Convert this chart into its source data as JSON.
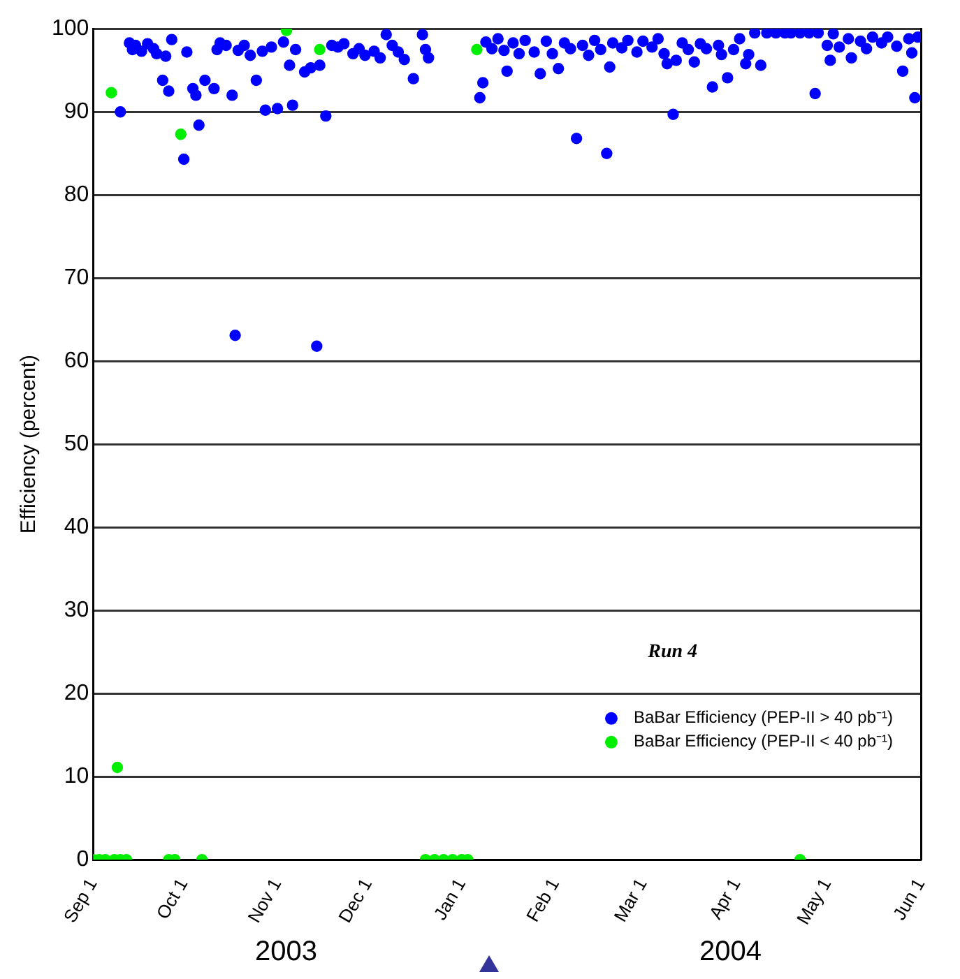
{
  "chart_data": {
    "type": "scatter",
    "ylabel": "Efficiency (percent)",
    "xlim": [
      "2003-09-01",
      "2004-06-01"
    ],
    "xticks": [
      {
        "value": "2003-09-01",
        "label": "Sep 1"
      },
      {
        "value": "2003-10-01",
        "label": "Oct 1"
      },
      {
        "value": "2003-11-01",
        "label": "Nov 1"
      },
      {
        "value": "2003-12-01",
        "label": "Dec 1"
      },
      {
        "value": "2004-01-01",
        "label": "Jan 1"
      },
      {
        "value": "2004-02-01",
        "label": "Feb 1"
      },
      {
        "value": "2004-03-01",
        "label": "Mar 1"
      },
      {
        "value": "2004-04-01",
        "label": "Apr 1"
      },
      {
        "value": "2004-05-01",
        "label": "May 1"
      },
      {
        "value": "2004-06-01",
        "label": "Jun 1"
      }
    ],
    "ylim": [
      0,
      100
    ],
    "yticks": [
      0,
      10,
      20,
      30,
      40,
      50,
      60,
      70,
      80,
      90,
      100
    ],
    "grid": "y",
    "legend": "bottom right",
    "marker": "circle",
    "annotations": [
      "Run 4",
      "2003",
      "2004"
    ],
    "series": [
      {
        "name": "BaBar Efficiency (PEP-II > 40 pb⁻¹)",
        "color": "#0000ff",
        "x": [
          "2003-09-10",
          "2003-09-13",
          "2003-09-14",
          "2003-09-15",
          "2003-09-17",
          "2003-09-19",
          "2003-09-21",
          "2003-09-22",
          "2003-09-24",
          "2003-09-25",
          "2003-09-26",
          "2003-09-27",
          "2003-10-01",
          "2003-10-02",
          "2003-10-04",
          "2003-10-05",
          "2003-10-06",
          "2003-10-08",
          "2003-10-11",
          "2003-10-12",
          "2003-10-13",
          "2003-10-15",
          "2003-10-17",
          "2003-10-18",
          "2003-10-19",
          "2003-10-21",
          "2003-10-23",
          "2003-10-25",
          "2003-10-27",
          "2003-10-28",
          "2003-10-30",
          "2003-11-01",
          "2003-11-03",
          "2003-11-05",
          "2003-11-06",
          "2003-11-07",
          "2003-11-10",
          "2003-11-12",
          "2003-11-14",
          "2003-11-15",
          "2003-11-17",
          "2003-11-19",
          "2003-11-21",
          "2003-11-23",
          "2003-11-26",
          "2003-11-28",
          "2003-11-30",
          "2003-12-03",
          "2003-12-05",
          "2003-12-07",
          "2003-12-09",
          "2003-12-11",
          "2003-12-13",
          "2003-12-16",
          "2003-12-19",
          "2003-12-20",
          "2003-12-21",
          "2004-01-07",
          "2004-01-08",
          "2004-01-09",
          "2004-01-11",
          "2004-01-13",
          "2004-01-15",
          "2004-01-16",
          "2004-01-18",
          "2004-01-20",
          "2004-01-22",
          "2004-01-25",
          "2004-01-27",
          "2004-01-29",
          "2004-01-31",
          "2004-02-02",
          "2004-02-04",
          "2004-02-06",
          "2004-02-08",
          "2004-02-10",
          "2004-02-12",
          "2004-02-14",
          "2004-02-16",
          "2004-02-18",
          "2004-02-19",
          "2004-02-20",
          "2004-02-23",
          "2004-02-25",
          "2004-02-28",
          "2004-03-01",
          "2004-03-04",
          "2004-03-06",
          "2004-03-08",
          "2004-03-09",
          "2004-03-11",
          "2004-03-12",
          "2004-03-14",
          "2004-03-16",
          "2004-03-18",
          "2004-03-20",
          "2004-03-22",
          "2004-03-24",
          "2004-03-26",
          "2004-03-27",
          "2004-03-29",
          "2004-03-31",
          "2004-04-02",
          "2004-04-04",
          "2004-04-05",
          "2004-04-07",
          "2004-04-09",
          "2004-04-11",
          "2004-04-14",
          "2004-04-17",
          "2004-04-19",
          "2004-04-22",
          "2004-04-25",
          "2004-04-27",
          "2004-04-28",
          "2004-05-01",
          "2004-05-02",
          "2004-05-03",
          "2004-05-05",
          "2004-05-08",
          "2004-05-09",
          "2004-05-12",
          "2004-05-14",
          "2004-05-16",
          "2004-05-19",
          "2004-05-21",
          "2004-05-24",
          "2004-05-26",
          "2004-05-28",
          "2004-05-29",
          "2004-05-30",
          "2004-05-31"
        ],
        "values": [
          90.0,
          98.3,
          97.5,
          98.0,
          97.3,
          98.2,
          97.6,
          97.0,
          93.8,
          96.7,
          92.5,
          98.7,
          84.3,
          97.2,
          92.8,
          92.0,
          88.4,
          93.8,
          92.8,
          97.5,
          98.3,
          98.0,
          92.0,
          63.1,
          97.4,
          98.0,
          96.8,
          93.8,
          97.3,
          90.2,
          97.8,
          90.4,
          98.4,
          95.6,
          90.8,
          97.5,
          94.8,
          95.3,
          61.8,
          95.6,
          89.5,
          98.0,
          97.8,
          98.2,
          97.0,
          97.6,
          96.8,
          97.3,
          96.5,
          99.3,
          98.0,
          97.2,
          96.3,
          94.0,
          99.3,
          97.5,
          96.5,
          91.7,
          93.5,
          98.4,
          97.6,
          98.8,
          97.4,
          94.9,
          98.3,
          97.0,
          98.6,
          97.2,
          94.6,
          98.5,
          97.0,
          95.2,
          98.3,
          97.6,
          86.8,
          98.0,
          96.8,
          98.6,
          97.5,
          85.0,
          95.4,
          98.3,
          97.7,
          98.6,
          97.2,
          98.5,
          97.8,
          98.8,
          97.0,
          95.8,
          89.7,
          96.2,
          98.3,
          97.5,
          96.0,
          98.2,
          97.6,
          93.0,
          98.0,
          96.9,
          94.1,
          97.5,
          98.8,
          95.8,
          96.9,
          99.5,
          95.6,
          99.5,
          99.5,
          99.5,
          99.5,
          99.5,
          99.5,
          92.2,
          99.5,
          98.0,
          96.2,
          99.4,
          97.8,
          98.8,
          96.5,
          98.5,
          97.6,
          99.0,
          98.3,
          99.0,
          97.9,
          94.9,
          98.8,
          97.1,
          91.7,
          99.0
        ]
      },
      {
        "name": "BaBar Efficiency (PEP-II < 40 pb⁻¹)",
        "color": "#00ee00",
        "x": [
          "2003-09-01",
          "2003-09-03",
          "2003-09-05",
          "2003-09-07",
          "2003-09-08",
          "2003-09-09",
          "2003-09-10",
          "2003-09-12",
          "2003-09-26",
          "2003-09-28",
          "2003-09-30",
          "2003-10-07",
          "2003-11-04",
          "2003-11-15",
          "2003-12-20",
          "2003-12-23",
          "2003-12-26",
          "2003-12-29",
          "2004-01-01",
          "2004-01-03",
          "2004-01-06",
          "2004-04-22"
        ],
        "values": [
          0,
          0,
          0,
          92.3,
          0,
          11.1,
          0,
          0,
          0,
          0,
          87.3,
          0,
          99.8,
          97.5,
          0,
          0,
          0,
          0,
          0,
          0,
          97.5,
          0
        ]
      }
    ]
  }
}
